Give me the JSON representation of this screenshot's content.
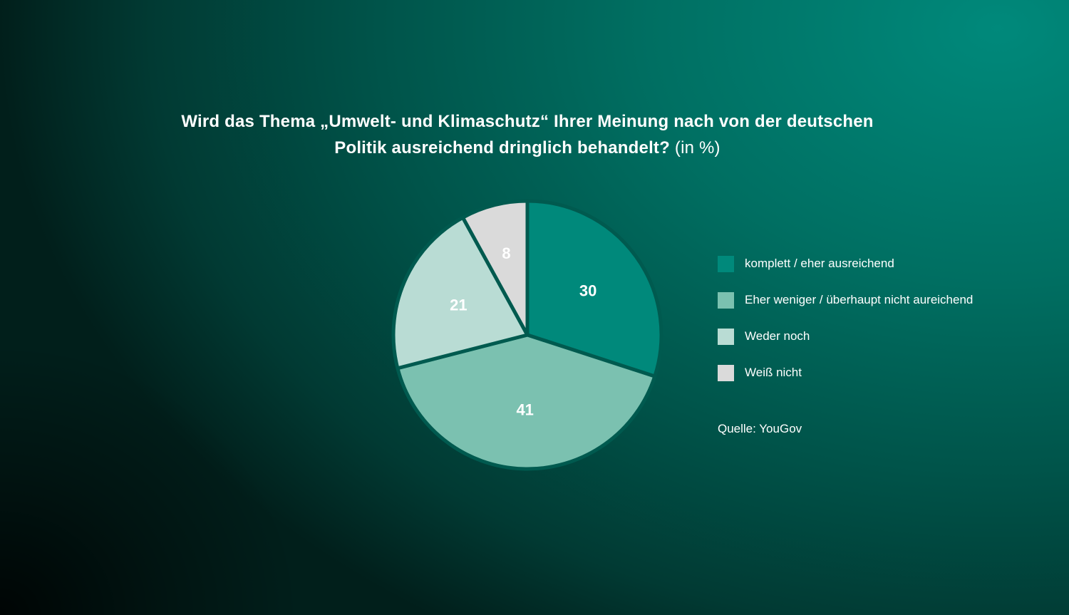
{
  "title": {
    "question": "Wird das Thema „Umwelt- und Klimaschutz“ Ihrer Meinung nach von der deutschen Politik ausreichend dringlich behandelt?",
    "unit": "(in %)"
  },
  "chart_data": {
    "type": "pie",
    "title": "Wird das Thema „Umwelt- und Klimaschutz“ Ihrer Meinung nach von der deutschen Politik ausreichend dringlich behandelt? (in %)",
    "start_angle_deg": 0,
    "direction": "clockwise",
    "legend_position": "right",
    "slices": [
      {
        "label": "komplett / eher ausreichend",
        "value": 30,
        "color": "#00897b",
        "label_color": "#ffffff"
      },
      {
        "label": "Eher weniger / überhaupt nicht aureichend",
        "value": 41,
        "color": "#7bc1b0",
        "label_color": "#ffffff"
      },
      {
        "label": "Weder noch",
        "value": 21,
        "color": "#b9dcd4",
        "label_color": "#ffffff"
      },
      {
        "label": "Weiß nicht",
        "value": 8,
        "color": "#dadada",
        "label_color": "#ffffff"
      }
    ],
    "separator_color": "#005a4f"
  },
  "source": "Quelle: YouGov"
}
